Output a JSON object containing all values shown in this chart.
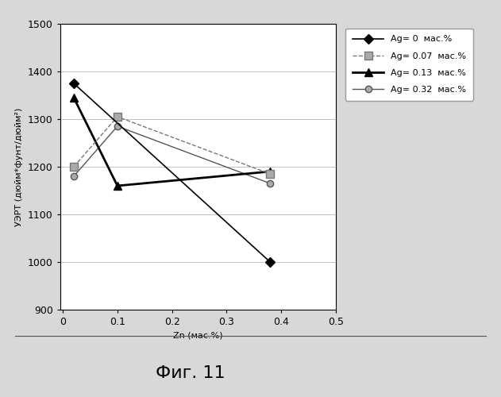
{
  "series": [
    {
      "label": "Ag= 0  мас.%",
      "x": [
        0.02,
        0.38
      ],
      "y": [
        1375,
        1000
      ],
      "color": "#000000",
      "marker": "D",
      "markersize": 6,
      "linestyle": "-",
      "linewidth": 1.2,
      "markerfacecolor": "#000000",
      "zorder": 5
    },
    {
      "label": "Ag= 0.07  мас.%",
      "x": [
        0.02,
        0.1,
        0.38
      ],
      "y": [
        1200,
        1305,
        1185
      ],
      "color": "#777777",
      "marker": "s",
      "markersize": 7,
      "linestyle": "--",
      "linewidth": 1.0,
      "markerfacecolor": "#aaaaaa",
      "zorder": 4
    },
    {
      "label": "Ag= 0.13  мас.%",
      "x": [
        0.02,
        0.1,
        0.38
      ],
      "y": [
        1345,
        1160,
        1190
      ],
      "color": "#000000",
      "marker": "^",
      "markersize": 7,
      "linestyle": "-",
      "linewidth": 2.0,
      "markerfacecolor": "#000000",
      "zorder": 3
    },
    {
      "label": "Ag= 0.32  мас.%",
      "x": [
        0.02,
        0.1,
        0.38
      ],
      "y": [
        1180,
        1285,
        1165
      ],
      "color": "#555555",
      "marker": "o",
      "markersize": 6,
      "linestyle": "-",
      "linewidth": 1.0,
      "markerfacecolor": "#aaaaaa",
      "zorder": 2
    }
  ],
  "xlabel": "Zn (мас.%)",
  "ylabel": "УЭРТ (дюйм*фунт/дюйм²)",
  "xlim": [
    -0.005,
    0.5
  ],
  "ylim": [
    900,
    1500
  ],
  "xticks": [
    0,
    0.1,
    0.2,
    0.3,
    0.4,
    0.5
  ],
  "yticks": [
    900,
    1000,
    1100,
    1200,
    1300,
    1400,
    1500
  ],
  "caption": "Фиг. 11",
  "outer_bg": "#d8d8d8",
  "plot_bg_color": "#ffffff",
  "grid": true,
  "legend_fontsize": 8,
  "axis_fontsize": 8,
  "tick_fontsize": 9,
  "caption_fontsize": 16
}
